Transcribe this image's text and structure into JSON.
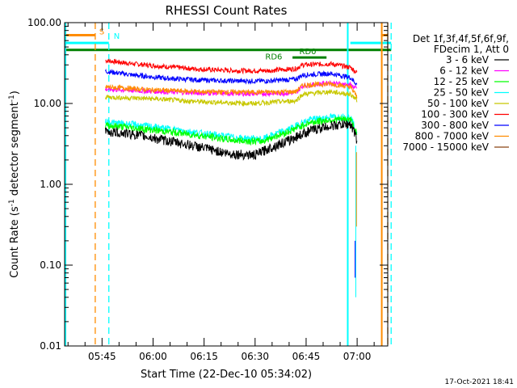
{
  "chart_data": {
    "type": "line",
    "title": "RHESSI Count Rates",
    "xlabel": "Start Time (22-Dec-10 05:34:02)",
    "ylabel_main": "Count Rate (s",
    "ylabel_sup": "-1",
    "ylabel_tail": " detector segment",
    "ylabel_sup2": "-1",
    "ylabel_close": ")",
    "y_scale": "log",
    "ylim": [
      0.01,
      100
    ],
    "xlim_minutes": [
      0,
      95
    ],
    "y_ticks": [
      {
        "value": 100,
        "label": "100.00"
      },
      {
        "value": 10,
        "label": "10.00"
      },
      {
        "value": 1,
        "label": "1.00"
      },
      {
        "value": 0.1,
        "label": "0.10"
      },
      {
        "value": 0.01,
        "label": "0.01"
      }
    ],
    "x_ticks": [
      {
        "minute": 11,
        "label": "05:45"
      },
      {
        "minute": 26,
        "label": "06:00"
      },
      {
        "minute": 41,
        "label": "06:15"
      },
      {
        "minute": 56,
        "label": "06:30"
      },
      {
        "minute": 71,
        "label": "06:45"
      },
      {
        "minute": 86,
        "label": "07:00"
      }
    ],
    "legend_header": [
      "Det 1f,3f,4f,5f,6f,9f,",
      "FDecim 1, Att 0"
    ],
    "legend_position": "right",
    "series": [
      {
        "name": "3 - 6 keV",
        "color": "#000000"
      },
      {
        "name": "6 - 12 keV",
        "color": "#ff00ff"
      },
      {
        "name": "12 - 25 keV",
        "color": "#00ff00"
      },
      {
        "name": "25 - 50 keV",
        "color": "#00ffff"
      },
      {
        "name": "50 - 100 keV",
        "color": "#c8c800"
      },
      {
        "name": "100 - 300 keV",
        "color": "#ff0000"
      },
      {
        "name": "300 - 800 keV",
        "color": "#0000ff"
      },
      {
        "name": "800 - 7000 keV",
        "color": "#ff8c00"
      },
      {
        "name": "7000 - 15000 keV",
        "color": "#8b4513"
      }
    ],
    "series_profiles": [
      {
        "series": "3 - 6 keV",
        "start_min": 12,
        "end_min": 86,
        "points": [
          [
            12,
            4.5
          ],
          [
            20,
            4.2
          ],
          [
            28,
            3.6
          ],
          [
            38,
            3.0
          ],
          [
            48,
            2.4
          ],
          [
            56,
            2.3
          ],
          [
            66,
            3.5
          ],
          [
            72,
            4.6
          ],
          [
            78,
            5.3
          ],
          [
            84,
            5.6
          ],
          [
            86,
            3.5
          ]
        ]
      },
      {
        "series": "6 - 12 keV",
        "start_min": 12,
        "end_min": 86,
        "points": [
          [
            12,
            15.0
          ],
          [
            25,
            14.2
          ],
          [
            40,
            13.5
          ],
          [
            55,
            13.2
          ],
          [
            68,
            13.5
          ],
          [
            70,
            16.5
          ],
          [
            78,
            18.0
          ],
          [
            84,
            17.0
          ],
          [
            86,
            15.0
          ]
        ]
      },
      {
        "series": "12 - 25 keV",
        "start_min": 12,
        "end_min": 86,
        "points": [
          [
            12,
            5.4
          ],
          [
            20,
            5.0
          ],
          [
            30,
            4.5
          ],
          [
            40,
            4.0
          ],
          [
            50,
            3.5
          ],
          [
            58,
            3.4
          ],
          [
            66,
            4.5
          ],
          [
            72,
            5.8
          ],
          [
            78,
            6.3
          ],
          [
            84,
            6.4
          ],
          [
            86,
            4.0
          ]
        ]
      },
      {
        "series": "25 - 50 keV",
        "start_min": 12,
        "end_min": 86,
        "points": [
          [
            12,
            5.9
          ],
          [
            20,
            5.5
          ],
          [
            30,
            4.9
          ],
          [
            40,
            4.3
          ],
          [
            50,
            3.8
          ],
          [
            58,
            3.6
          ],
          [
            66,
            4.8
          ],
          [
            72,
            6.3
          ],
          [
            78,
            6.8
          ],
          [
            84,
            6.9
          ],
          [
            86,
            4.0
          ]
        ]
      },
      {
        "series": "50 - 100 keV",
        "start_min": 12,
        "end_min": 86,
        "points": [
          [
            12,
            12.0
          ],
          [
            25,
            11.5
          ],
          [
            40,
            10.5
          ],
          [
            55,
            10.0
          ],
          [
            68,
            10.8
          ],
          [
            70,
            13.0
          ],
          [
            78,
            14.0
          ],
          [
            84,
            13.0
          ],
          [
            86,
            11.0
          ]
        ]
      },
      {
        "series": "100 - 300 keV",
        "start_min": 12,
        "end_min": 86,
        "points": [
          [
            12,
            34.0
          ],
          [
            20,
            31.0
          ],
          [
            30,
            28.5
          ],
          [
            40,
            26.5
          ],
          [
            50,
            25.5
          ],
          [
            60,
            25.5
          ],
          [
            68,
            27.0
          ],
          [
            70,
            30.0
          ],
          [
            78,
            31.0
          ],
          [
            84,
            28.0
          ],
          [
            86,
            24.0
          ]
        ]
      },
      {
        "series": "300 - 800 keV",
        "start_min": 12,
        "end_min": 86,
        "points": [
          [
            12,
            25.0
          ],
          [
            20,
            22.5
          ],
          [
            30,
            20.5
          ],
          [
            40,
            19.5
          ],
          [
            50,
            19.0
          ],
          [
            60,
            19.0
          ],
          [
            68,
            20.0
          ],
          [
            70,
            22.5
          ],
          [
            78,
            23.5
          ],
          [
            84,
            21.0
          ],
          [
            86,
            17.0
          ]
        ]
      },
      {
        "series": "800 - 7000 keV",
        "start_min": 12,
        "end_min": 86,
        "points": [
          [
            12,
            16.0
          ],
          [
            25,
            14.8
          ],
          [
            40,
            14.0
          ],
          [
            55,
            13.8
          ],
          [
            68,
            14.0
          ],
          [
            70,
            16.8
          ],
          [
            78,
            17.5
          ],
          [
            84,
            16.0
          ],
          [
            86,
            12.0
          ]
        ]
      }
    ],
    "event_markers": [
      {
        "label": "S",
        "color": "#ff8c00",
        "dashed": true,
        "minute": 9
      },
      {
        "label": "N",
        "color": "#00ffff",
        "dashed": true,
        "minute": 13
      },
      {
        "label": "",
        "color": "#ff8c00",
        "dashed": true,
        "minute": 95
      },
      {
        "label": "",
        "color": "#00ffff",
        "dashed": true,
        "minute": 96
      }
    ],
    "attenuator_lines": [
      {
        "color": "#00ffff",
        "minute": 0
      },
      {
        "color": "#00ffff",
        "minute": 83
      },
      {
        "color": "#ff8c00",
        "minute": 93
      }
    ],
    "state_bars": [
      {
        "label": "S",
        "color": "#ff8c00",
        "y": 70,
        "segments": [
          [
            0,
            9
          ],
          [
            93,
            95
          ]
        ]
      },
      {
        "label": "N",
        "color": "#00ffff",
        "y": 56,
        "segments": [
          [
            0,
            13
          ],
          [
            84,
            96
          ]
        ]
      },
      {
        "label": "",
        "color": "#008000",
        "y": 46,
        "segments": [
          [
            0,
            96
          ]
        ]
      },
      {
        "label": "RD6",
        "color": "#008000",
        "y": 46,
        "segments": []
      },
      {
        "label": "RD0",
        "color": "#008000",
        "y": 37,
        "segments": [
          [
            67,
            77
          ]
        ]
      }
    ],
    "footer_date": "17-Oct-2021 18:41"
  }
}
